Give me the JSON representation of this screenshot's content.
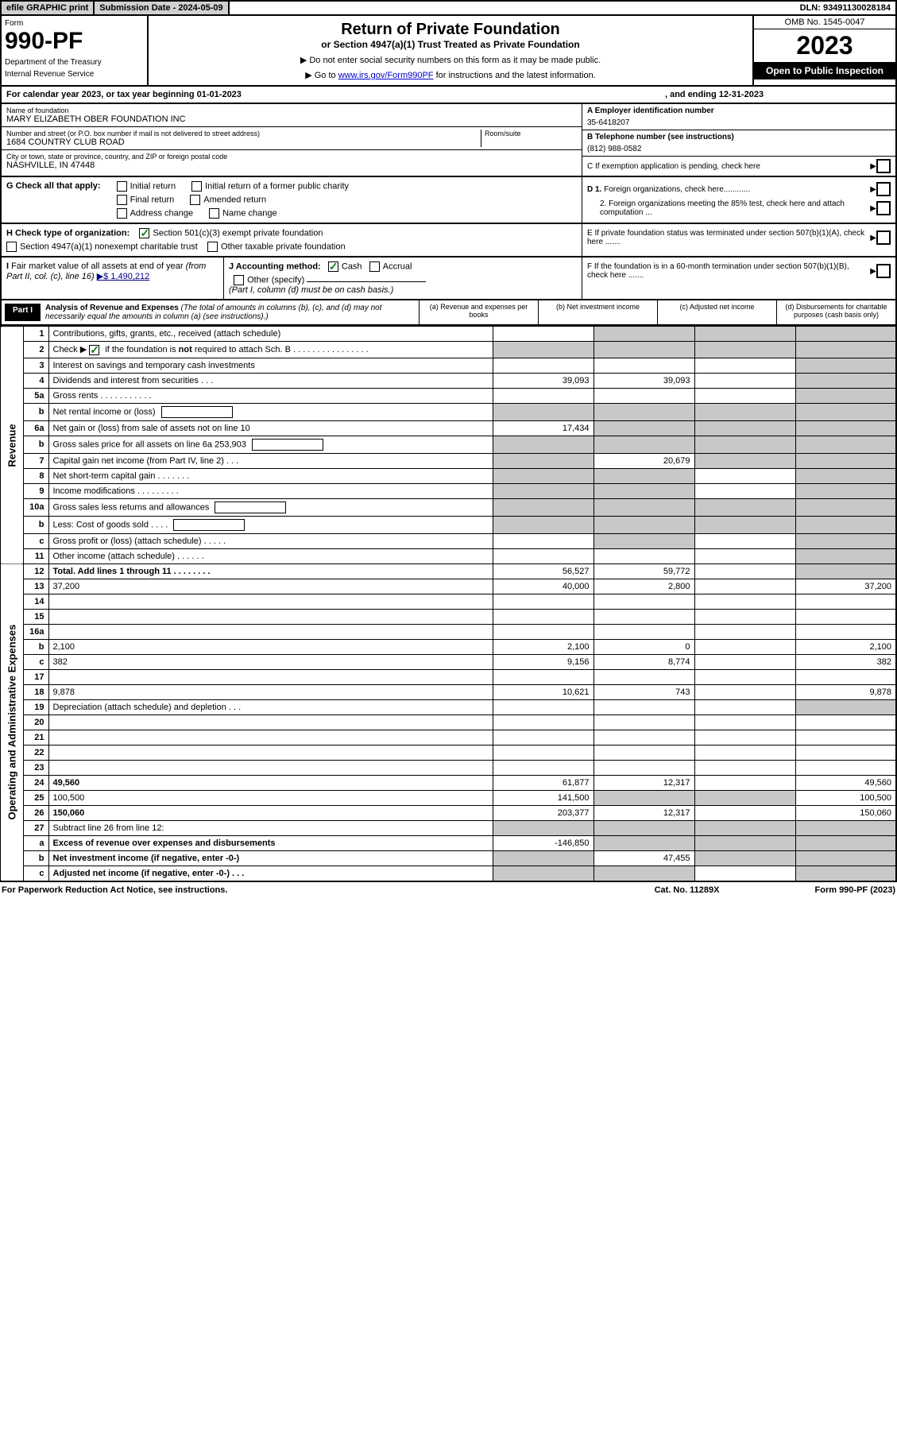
{
  "topbar": {
    "efile": "efile GRAPHIC print",
    "submission": "Submission Date - 2024-05-09",
    "dln": "DLN: 93491130028184"
  },
  "header": {
    "form_label": "Form",
    "form_no": "990-PF",
    "dept": "Department of the Treasury",
    "irs": "Internal Revenue Service",
    "title": "Return of Private Foundation",
    "subtitle": "or Section 4947(a)(1) Trust Treated as Private Foundation",
    "note1": "▶ Do not enter social security numbers on this form as it may be made public.",
    "note2_pre": "▶ Go to ",
    "note2_link": "www.irs.gov/Form990PF",
    "note2_post": " for instructions and the latest information.",
    "omb": "OMB No. 1545-0047",
    "year": "2023",
    "open": "Open to Public Inspection"
  },
  "calyear": {
    "text1": "For calendar year 2023, or tax year beginning 01-01-2023",
    "text2": ", and ending 12-31-2023"
  },
  "id": {
    "name_lbl": "Name of foundation",
    "name": "MARY ELIZABETH OBER FOUNDATION INC",
    "addr_lbl": "Number and street (or P.O. box number if mail is not delivered to street address)",
    "addr": "1684 COUNTRY CLUB ROAD",
    "room_lbl": "Room/suite",
    "city_lbl": "City or town, state or province, country, and ZIP or foreign postal code",
    "city": "NASHVILLE, IN  47448",
    "a_lbl": "A Employer identification number",
    "a_val": "35-6418207",
    "b_lbl": "B Telephone number (see instructions)",
    "b_val": "(812) 988-0582",
    "c_lbl": "C If exemption application is pending, check here"
  },
  "g": {
    "label": "G Check all that apply:",
    "initial": "Initial return",
    "final": "Final return",
    "address": "Address change",
    "initial_former": "Initial return of a former public charity",
    "amended": "Amended return",
    "name_change": "Name change",
    "d1": "D 1. Foreign organizations, check here............",
    "d2": "2. Foreign organizations meeting the 85% test, check here and attach computation ...",
    "e": "E  If private foundation status was terminated under section 507(b)(1)(A), check here .......",
    "f": "F  If the foundation is in a 60-month termination under section 507(b)(1)(B), check here ......."
  },
  "h": {
    "label": "H Check type of organization:",
    "opt1": "Section 501(c)(3) exempt private foundation",
    "opt2": "Section 4947(a)(1) nonexempt charitable trust",
    "opt3": "Other taxable private foundation"
  },
  "i": {
    "label": "I Fair market value of all assets at end of year (from Part II, col. (c), line 16)",
    "arrow_val": "▶$  1,490,212"
  },
  "j": {
    "label": "J Accounting method:",
    "cash": "Cash",
    "accrual": "Accrual",
    "other": "Other (specify)",
    "note": "(Part I, column (d) must be on cash basis.)"
  },
  "part1": {
    "label": "Part I",
    "title": "Analysis of Revenue and Expenses",
    "title_note": " (The total of amounts in columns (b), (c), and (d) may not necessarily equal the amounts in column (a) (see instructions).)",
    "col_a": "(a)   Revenue and expenses per books",
    "col_b": "(b)   Net investment income",
    "col_c": "(c)   Adjusted net income",
    "col_d": "(d)   Disbursements for charitable purposes (cash basis only)"
  },
  "side_labels": {
    "revenue": "Revenue",
    "expenses": "Operating and Administrative Expenses"
  },
  "rows": [
    {
      "n": "1",
      "d": "Contributions, gifts, grants, etc., received (attach schedule)",
      "a": "",
      "b_shade": true,
      "c_shade": true,
      "d_shade": true
    },
    {
      "n": "2",
      "d": "Check ▶ ☑ if the foundation is not required to attach Sch. B     .   .   .   .   .   .   .   .   .   .   .   .   .   .   .   .",
      "a_shade": true,
      "b_shade": true,
      "c_shade": true,
      "d_shade": true,
      "bold_not": true
    },
    {
      "n": "3",
      "d": "Interest on savings and temporary cash investments",
      "a": "",
      "b": "",
      "c": "",
      "d_shade": true
    },
    {
      "n": "4",
      "d": "Dividends and interest from securities    .    .    .",
      "a": "39,093",
      "b": "39,093",
      "c": "",
      "d_shade": true
    },
    {
      "n": "5a",
      "d": "Gross rents    .    .    .    .    .    .    .    .    .    .    .",
      "a": "",
      "b": "",
      "c": "",
      "d_shade": true
    },
    {
      "n": "b",
      "d": "Net rental income or (loss)  ",
      "a_shade": true,
      "b_shade": true,
      "c_shade": true,
      "d_shade": true,
      "inner_box": true
    },
    {
      "n": "6a",
      "d": "Net gain or (loss) from sale of assets not on line 10",
      "a": "17,434",
      "b_shade": true,
      "c_shade": true,
      "d_shade": true
    },
    {
      "n": "b",
      "d": "Gross sales price for all assets on line 6a                253,903",
      "a_shade": true,
      "b_shade": true,
      "c_shade": true,
      "d_shade": true,
      "inner_box": true
    },
    {
      "n": "7",
      "d": "Capital gain net income (from Part IV, line 2)    .    .    .",
      "a_shade": true,
      "b": "20,679",
      "c_shade": true,
      "d_shade": true
    },
    {
      "n": "8",
      "d": "Net short-term capital gain   .    .    .    .    .    .    .",
      "a_shade": true,
      "b_shade": true,
      "c": "",
      "d_shade": true
    },
    {
      "n": "9",
      "d": "Income modifications  .    .    .    .    .    .    .    .    .",
      "a_shade": true,
      "b_shade": true,
      "c": "",
      "d_shade": true
    },
    {
      "n": "10a",
      "d": "Gross sales less returns and allowances",
      "a_shade": true,
      "b_shade": true,
      "c_shade": true,
      "d_shade": true,
      "inner_box": true
    },
    {
      "n": "b",
      "d": "Less: Cost of goods sold     .    .    .    .",
      "a_shade": true,
      "b_shade": true,
      "c_shade": true,
      "d_shade": true,
      "inner_box": true
    },
    {
      "n": "c",
      "d": "Gross profit or (loss) (attach schedule)    .    .    .    .    .",
      "a": "",
      "b_shade": true,
      "c": "",
      "d_shade": true
    },
    {
      "n": "11",
      "d": "Other income (attach schedule)    .    .    .    .    .    .",
      "a": "",
      "b": "",
      "c": "",
      "d_shade": true
    },
    {
      "n": "12",
      "d": "Total. Add lines 1 through 11   .    .    .    .    .    .    .    .",
      "a": "56,527",
      "b": "59,772",
      "c": "",
      "d_shade": true,
      "bold": true
    },
    {
      "n": "13",
      "d": "37,200",
      "a": "40,000",
      "b": "2,800",
      "c": ""
    },
    {
      "n": "14",
      "d": "",
      "a": "",
      "b": "",
      "c": ""
    },
    {
      "n": "15",
      "d": "",
      "a": "",
      "b": "",
      "c": ""
    },
    {
      "n": "16a",
      "d": "",
      "a": "",
      "b": "",
      "c": ""
    },
    {
      "n": "b",
      "d": "2,100",
      "a": "2,100",
      "b": "0",
      "c": ""
    },
    {
      "n": "c",
      "d": "382",
      "a": "9,156",
      "b": "8,774",
      "c": ""
    },
    {
      "n": "17",
      "d": "",
      "a": "",
      "b": "",
      "c": ""
    },
    {
      "n": "18",
      "d": "9,878",
      "a": "10,621",
      "b": "743",
      "c": ""
    },
    {
      "n": "19",
      "d": "Depreciation (attach schedule) and depletion    .    .    .",
      "a": "",
      "b": "",
      "c": "",
      "d_shade": true
    },
    {
      "n": "20",
      "d": "",
      "a": "",
      "b": "",
      "c": ""
    },
    {
      "n": "21",
      "d": "",
      "a": "",
      "b": "",
      "c": ""
    },
    {
      "n": "22",
      "d": "",
      "a": "",
      "b": "",
      "c": ""
    },
    {
      "n": "23",
      "d": "",
      "a": "",
      "b": "",
      "c": ""
    },
    {
      "n": "24",
      "d": "49,560",
      "a": "61,877",
      "b": "12,317",
      "c": "",
      "bold": true
    },
    {
      "n": "25",
      "d": "100,500",
      "a": "141,500",
      "b_shade": true,
      "c_shade": true
    },
    {
      "n": "26",
      "d": "150,060",
      "a": "203,377",
      "b": "12,317",
      "c": "",
      "bold": true
    },
    {
      "n": "27",
      "d": "Subtract line 26 from line 12:",
      "a_shade": true,
      "b_shade": true,
      "c_shade": true,
      "d_shade": true
    },
    {
      "n": "a",
      "d": "Excess of revenue over expenses and disbursements",
      "a": "-146,850",
      "b_shade": true,
      "c_shade": true,
      "d_shade": true,
      "bold": true
    },
    {
      "n": "b",
      "d": "Net investment income (if negative, enter -0-)",
      "a_shade": true,
      "b": "47,455",
      "c_shade": true,
      "d_shade": true,
      "bold": true
    },
    {
      "n": "c",
      "d": "Adjusted net income (if negative, enter -0-)   .    .    .",
      "a_shade": true,
      "b_shade": true,
      "c": "",
      "d_shade": true,
      "bold": true
    }
  ],
  "footer": {
    "left": "For Paperwork Reduction Act Notice, see instructions.",
    "center": "Cat. No. 11289X",
    "right": "Form 990-PF (2023)"
  },
  "colors": {
    "shade": "#c8c8c8",
    "black": "#000000",
    "link": "#0000cc",
    "check_green": "#1a7a1a"
  }
}
